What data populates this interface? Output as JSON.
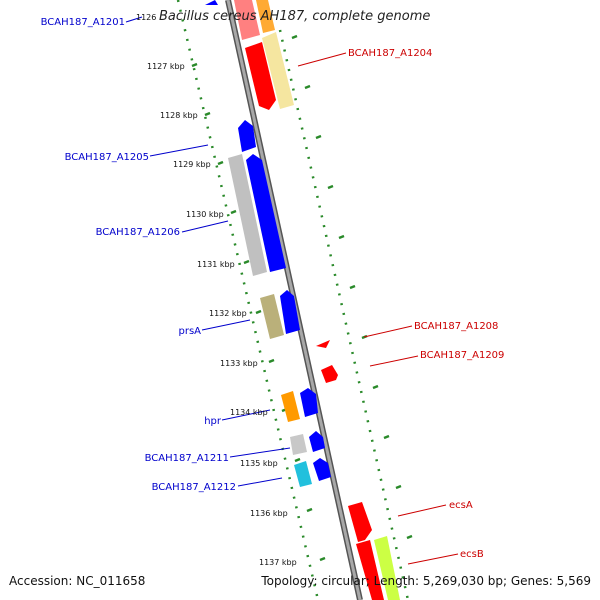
{
  "title": "Bacillus cereus AH187, complete genome",
  "footer": {
    "accession": "Accession: NC_011658",
    "topology": "Topology: circular; Length: 5,269,030 bp; Genes: 5,569"
  },
  "ruler_labels": [
    "1126",
    "1127 kbp",
    "1128 kbp",
    "1129 kbp",
    "1130 kbp",
    "1131 kbp",
    "1132 kbp",
    "1133 kbp",
    "1134 kbp",
    "1135 kbp",
    "1136 kbp",
    "1137 kbp"
  ],
  "gene_labels": {
    "left": [
      "BCAH187_A1201",
      "BCAH187_A1205",
      "BCAH187_A1206",
      "prsA",
      "hpr",
      "BCAH187_A1211",
      "BCAH187_A1212"
    ],
    "right": [
      "BCAH187_A1204",
      "BCAH187_A1208",
      "BCAH187_A1209",
      "ecsA",
      "ecsB"
    ]
  },
  "colors": {
    "label_left": "#0000cc",
    "label_right": "#cc0000",
    "backbone": "#888888",
    "ticks": "#2a8a2a",
    "minus_strand": "#0000ff",
    "plus_strand": "#ff0000"
  }
}
